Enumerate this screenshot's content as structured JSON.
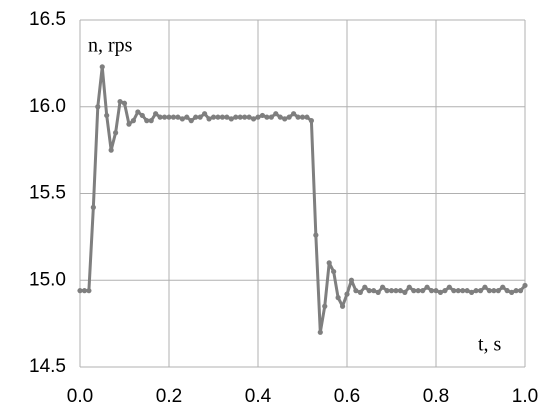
{
  "chart_data": {
    "type": "line",
    "y_label": "n, rps",
    "x_label": "t, s",
    "x": [
      0,
      0.01,
      0.02,
      0.03,
      0.04,
      0.05,
      0.06,
      0.07,
      0.08,
      0.09,
      0.1,
      0.11,
      0.12,
      0.13,
      0.14,
      0.15,
      0.16,
      0.17,
      0.18,
      0.19,
      0.2,
      0.21,
      0.22,
      0.23,
      0.24,
      0.25,
      0.26,
      0.27,
      0.28,
      0.29,
      0.3,
      0.31,
      0.32,
      0.33,
      0.34,
      0.35,
      0.36,
      0.37,
      0.38,
      0.39,
      0.4,
      0.41,
      0.42,
      0.43,
      0.44,
      0.45,
      0.46,
      0.47,
      0.48,
      0.49,
      0.5,
      0.51,
      0.52,
      0.53,
      0.54,
      0.55,
      0.56,
      0.57,
      0.58,
      0.59,
      0.6,
      0.61,
      0.62,
      0.63,
      0.64,
      0.65,
      0.66,
      0.67,
      0.68,
      0.69,
      0.7,
      0.71,
      0.72,
      0.73,
      0.74,
      0.75,
      0.76,
      0.77,
      0.78,
      0.79,
      0.8,
      0.81,
      0.82,
      0.83,
      0.84,
      0.85,
      0.86,
      0.87,
      0.88,
      0.89,
      0.9,
      0.91,
      0.92,
      0.93,
      0.94,
      0.95,
      0.96,
      0.97,
      0.98,
      0.99,
      1.0
    ],
    "series": [
      {
        "color": "#7f7f7f",
        "values": [
          14.94,
          14.94,
          14.94,
          15.42,
          16.0,
          16.23,
          15.95,
          15.75,
          15.85,
          16.03,
          16.02,
          15.9,
          15.92,
          15.97,
          15.95,
          15.92,
          15.92,
          15.96,
          15.94,
          15.94,
          15.94,
          15.94,
          15.94,
          15.93,
          15.94,
          15.92,
          15.94,
          15.94,
          15.96,
          15.93,
          15.94,
          15.94,
          15.94,
          15.94,
          15.93,
          15.94,
          15.94,
          15.94,
          15.94,
          15.93,
          15.94,
          15.95,
          15.94,
          15.94,
          15.96,
          15.94,
          15.93,
          15.94,
          15.96,
          15.94,
          15.94,
          15.94,
          15.92,
          15.26,
          14.7,
          14.85,
          15.1,
          15.05,
          14.9,
          14.85,
          14.92,
          15.0,
          14.94,
          14.93,
          14.96,
          14.94,
          14.94,
          14.93,
          14.96,
          14.94,
          14.94,
          14.94,
          14.94,
          14.93,
          14.96,
          14.94,
          14.94,
          14.94,
          14.96,
          14.94,
          14.94,
          14.93,
          14.94,
          14.96,
          14.94,
          14.94,
          14.94,
          14.94,
          14.93,
          14.94,
          14.94,
          14.96,
          14.94,
          14.94,
          14.94,
          14.96,
          14.94,
          14.93,
          14.94,
          14.94,
          14.97
        ]
      }
    ],
    "xlim": [
      0,
      1.0
    ],
    "xticks": [
      {
        "value": 0,
        "label": "0.0"
      },
      0.2,
      0.4,
      0.6,
      0.8,
      {
        "value": 1.0,
        "label": "1.0"
      }
    ],
    "ylim": [
      14.5,
      16.5
    ],
    "yticks": [
      14.5,
      {
        "value": 15.0,
        "label": "15.0"
      },
      15.5,
      {
        "value": 16.0,
        "label": "16.0"
      },
      16.5
    ],
    "grid": true
  }
}
